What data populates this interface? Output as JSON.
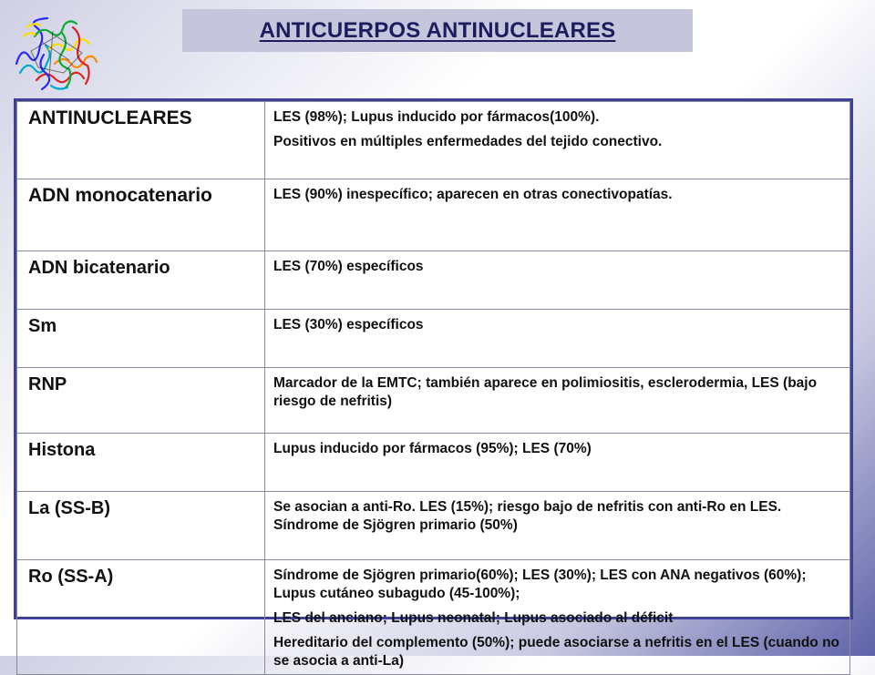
{
  "title": "ANTICUERPOS ANTINUCLEARES",
  "logo": {
    "icon": "protein-structure-icon",
    "colors": [
      "#2a2aff",
      "#11aa33",
      "#ffdd00",
      "#ff8800",
      "#dd2222",
      "#00aacc"
    ]
  },
  "table": {
    "rows": [
      {
        "name": "ANTINUCLEARES",
        "desc": [
          "LES (98%); Lupus inducido por fármacos(100%).",
          "Positivos en múltiples enfermedades del tejido conectivo."
        ]
      },
      {
        "name": "ADN monocatenario",
        "desc": [
          "LES (90%) inespecífico; aparecen en otras conectivopatías."
        ]
      },
      {
        "name": "ADN bicatenario",
        "desc": [
          "LES (70%) específicos"
        ]
      },
      {
        "name": "Sm",
        "desc": [
          "LES (30%) específicos"
        ]
      },
      {
        "name": "RNP",
        "desc": [
          "Marcador de la EMTC; también aparece en polimiositis, esclerodermia, LES (bajo riesgo de nefritis)"
        ]
      },
      {
        "name": "Histona",
        "desc": [
          "Lupus inducido por fármacos (95%); LES (70%)"
        ]
      },
      {
        "name": "La (SS-B)",
        "desc": [
          "Se asocian a anti-Ro. LES (15%); riesgo bajo de nefritis con anti-Ro en LES. Síndrome de Sjögren primario (50%)"
        ]
      },
      {
        "name": "Ro (SS-A)",
        "desc": [
          "Síndrome de Sjögren primario(60%); LES (30%); LES con ANA negativos (60%); Lupus cutáneo subagudo (45-100%);",
          "LES del anciano; Lupus neonatal; Lupus asociado al déficit",
          "Hereditario del complemento (50%); puede asociarse a nefritis en el LES (cuando no se asocia a anti-La)"
        ]
      }
    ]
  }
}
